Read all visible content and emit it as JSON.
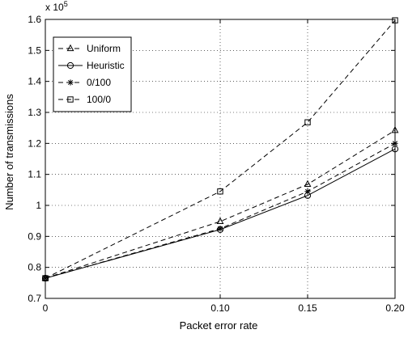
{
  "chart_data": {
    "type": "line",
    "title": "",
    "xlabel": "Packet error rate",
    "ylabel": "Number of transmissions",
    "y_multiplier_label": "x 10",
    "y_multiplier_exponent": "5",
    "x": [
      0,
      0.1,
      0.15,
      0.2
    ],
    "x_tick_labels": [
      "0",
      "0.10",
      "0.15",
      "0.20"
    ],
    "ylim": [
      0.7,
      1.6
    ],
    "y_ticks": [
      0.7,
      0.8,
      0.9,
      1.0,
      1.1,
      1.2,
      1.3,
      1.4,
      1.5,
      1.6
    ],
    "y_tick_labels": [
      "0.7",
      "0.8",
      "0.9",
      "1",
      "1.1",
      "1.2",
      "1.3",
      "1.4",
      "1.5",
      "1.6"
    ],
    "grid": "dotted",
    "legend_position": "top-left",
    "series": [
      {
        "name": "Uniform",
        "marker": "triangle",
        "line_style": "dashed",
        "values": [
          0.765,
          0.948,
          1.068,
          1.242
        ]
      },
      {
        "name": "Heuristic",
        "marker": "circle",
        "line_style": "solid",
        "values": [
          0.765,
          0.922,
          1.032,
          1.182
        ]
      },
      {
        "name": "0/100",
        "marker": "star",
        "line_style": "dashed",
        "values": [
          0.765,
          0.925,
          1.045,
          1.2
        ]
      },
      {
        "name": "100/0",
        "marker": "square",
        "line_style": "dashed",
        "values": [
          0.765,
          1.045,
          1.268,
          1.597
        ]
      }
    ]
  }
}
